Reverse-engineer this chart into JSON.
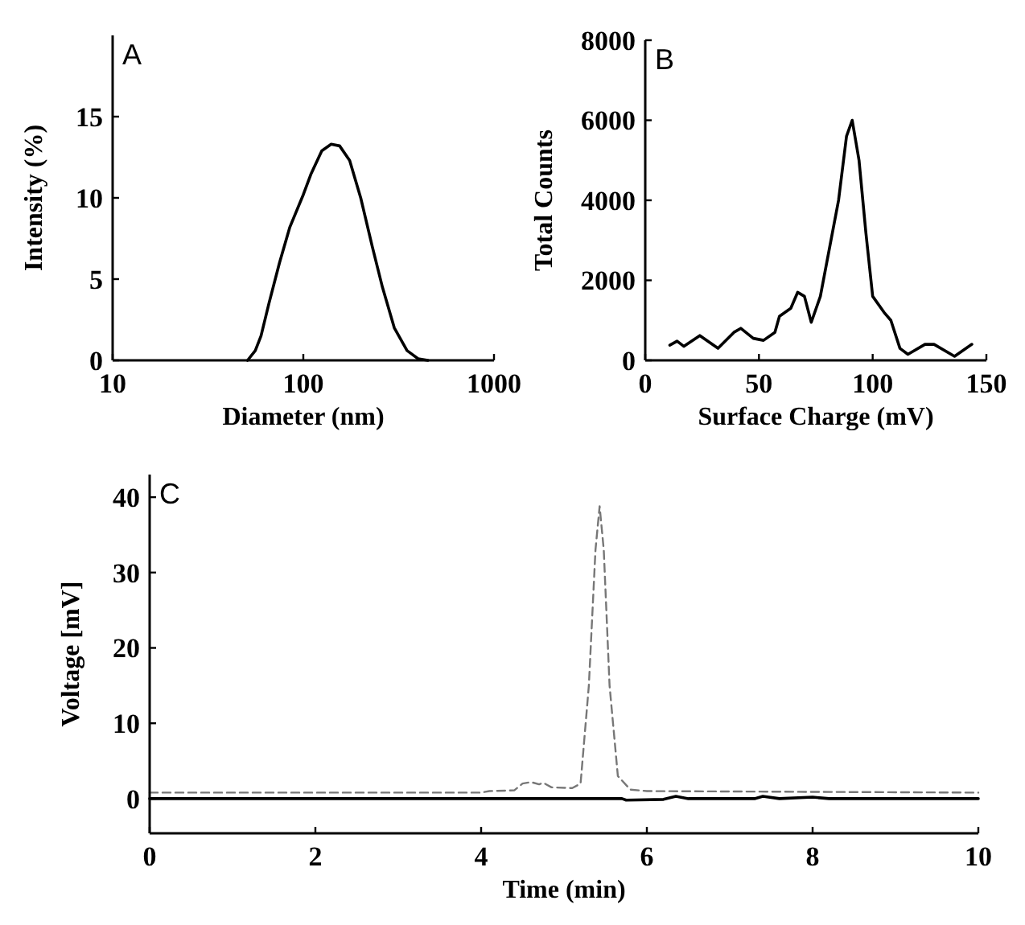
{
  "chart_data": [
    {
      "type": "line",
      "title": "A",
      "xlabel": "Diameter (nm)",
      "ylabel": "Intensity (%)",
      "log": "x",
      "xlim": [
        10,
        1000
      ],
      "xticks": [
        10,
        100,
        1000
      ],
      "ylim": [
        0,
        20
      ],
      "yticks": [
        0,
        5,
        10,
        15
      ],
      "series": [
        {
          "color": "#000000",
          "x": [
            51,
            56,
            60,
            66,
            75,
            85,
            100,
            110,
            125,
            140,
            155,
            175,
            200,
            230,
            260,
            300,
            350,
            400,
            450
          ],
          "values": [
            0,
            0.6,
            1.5,
            3.5,
            6,
            8.2,
            10.2,
            11.5,
            12.9,
            13.3,
            13.2,
            12.3,
            10,
            7,
            4.5,
            2,
            0.6,
            0.1,
            0
          ]
        }
      ]
    },
    {
      "type": "line",
      "title": "B",
      "xlabel": "Surface Charge (mV)",
      "ylabel": "Total Counts",
      "xlim": [
        0,
        150
      ],
      "xticks": [
        0,
        50,
        100,
        150
      ],
      "ylim": [
        0,
        8000
      ],
      "yticks": [
        0,
        2000,
        4000,
        6000,
        8000
      ],
      "series": [
        {
          "color": "#000000",
          "x": [
            10.8,
            14,
            17,
            24,
            32,
            39,
            42,
            47.5,
            52,
            57,
            59,
            64,
            67,
            70,
            73,
            77,
            81,
            85,
            88.5,
            91,
            94,
            97,
            100,
            105,
            108,
            112,
            115.5,
            123,
            127,
            136,
            143.6
          ],
          "values": [
            380,
            480,
            350,
            620,
            300,
            700,
            800,
            550,
            500,
            700,
            1100,
            1300,
            1700,
            1600,
            950,
            1600,
            2800,
            4000,
            5600,
            6000,
            5000,
            3200,
            1600,
            1200,
            1000,
            300,
            150,
            400,
            400,
            100,
            400
          ]
        }
      ]
    },
    {
      "type": "line",
      "title": "C",
      "xlabel": "Time (min)",
      "ylabel": "Voltage [mV]",
      "xlim": [
        0,
        10
      ],
      "xticks": [
        0,
        2,
        4,
        6,
        8,
        10
      ],
      "ylim": [
        -4.6,
        43
      ],
      "yticks": [
        0,
        10,
        20,
        30,
        40
      ],
      "series": [
        {
          "color": "#777777",
          "line_style": "dashed",
          "x": [
            0,
            4,
            4.1,
            4.4,
            4.5,
            4.6,
            4.7,
            4.75,
            4.85,
            5.1,
            5.2,
            5.3,
            5.38,
            5.43,
            5.48,
            5.55,
            5.65,
            5.8,
            6,
            10
          ],
          "values": [
            0.8,
            0.8,
            1,
            1.1,
            2,
            2.2,
            1.9,
            2.1,
            1.5,
            1.4,
            2,
            15,
            33,
            38.8,
            33,
            15,
            3,
            1.2,
            1,
            0.8
          ]
        },
        {
          "color": "#000000",
          "line_style": "solid",
          "x": [
            0,
            5.7,
            5.75,
            6.2,
            6.35,
            6.5,
            7.3,
            7.4,
            7.6,
            8,
            8.2,
            10
          ],
          "values": [
            0,
            0,
            -0.2,
            -0.1,
            0.3,
            0,
            0,
            0.3,
            0,
            0.2,
            0,
            0
          ]
        }
      ]
    }
  ]
}
